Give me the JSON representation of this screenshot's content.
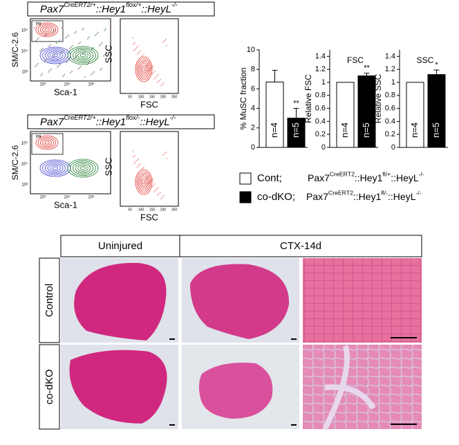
{
  "flow_panels": [
    {
      "title": [
        "Pax7",
        "CreERT2/+",
        "::Hey1",
        "flox/+",
        "::HeyL",
        "-/-"
      ],
      "gate": "P9",
      "x_label": "Sca-1",
      "y_label": "SM/C-2.6",
      "log_ticks": [
        "10³",
        "10⁴",
        "10⁵"
      ],
      "scatter_x_label": "FSC",
      "scatter_y_label": "SSC",
      "fsc_ticks": [
        50,
        100,
        150,
        200,
        250
      ]
    },
    {
      "title": [
        "Pax7",
        "CreERT2/+",
        "::Hey1",
        "flox/-",
        "::HeyL",
        "-/-"
      ],
      "gate": "P9",
      "x_label": "Sca-1",
      "y_label": "SM/C-2.6",
      "log_ticks": [
        "10³",
        "10⁴",
        "10⁵"
      ],
      "scatter_x_label": "FSC",
      "scatter_y_label": "SSC",
      "fsc_ticks": [
        50,
        100,
        150,
        200,
        250
      ]
    }
  ],
  "chart_data": [
    {
      "type": "bar",
      "y_label": "% MuSC fraction",
      "categories": [
        "n=4",
        "n=5"
      ],
      "values": [
        6.7,
        3.0
      ],
      "errors": [
        1.2,
        1.0
      ],
      "colors": [
        "#ffffff",
        "#000000"
      ],
      "significance": "**",
      "ylim": [
        0,
        10
      ],
      "yticks": [
        0,
        2,
        4,
        6,
        8,
        10
      ]
    },
    {
      "type": "bar",
      "title": "FSC",
      "y_label": "Relative FSC",
      "categories": [
        "n=4",
        "n=5"
      ],
      "values": [
        1.0,
        1.1
      ],
      "errors": [
        0,
        0.04
      ],
      "colors": [
        "#ffffff",
        "#000000"
      ],
      "significance": "**",
      "ylim": [
        0,
        1.5
      ],
      "yticks": [
        0,
        0.2,
        0.4,
        0.6,
        0.8,
        1,
        1.2,
        1.4
      ]
    },
    {
      "type": "bar",
      "title": "SSC",
      "y_label": "Relative SSC",
      "categories": [
        "n=4",
        "n=5"
      ],
      "values": [
        1.0,
        1.12
      ],
      "errors": [
        0,
        0.07
      ],
      "colors": [
        "#ffffff",
        "#000000"
      ],
      "significance": "*",
      "ylim": [
        0,
        1.5
      ],
      "yticks": [
        0,
        0.2,
        0.4,
        0.6,
        0.8,
        1,
        1.2,
        1.4
      ]
    }
  ],
  "legend": [
    {
      "label": "Cont;",
      "color": "#ffffff",
      "genotype": [
        "Pax7",
        "CreERT2",
        "::Hey1",
        "fl/+",
        "::HeyL",
        "-/-"
      ]
    },
    {
      "label": "co-dKO;",
      "color": "#000000",
      "genotype": [
        "Pax7",
        "CreERT2",
        "::Hey1",
        "fl/-",
        "::HeyL",
        "-/-"
      ]
    }
  ],
  "histology": {
    "columns": [
      "Uninjured",
      "CTX-14d"
    ],
    "rows": [
      "Control",
      "co-dKO"
    ]
  }
}
